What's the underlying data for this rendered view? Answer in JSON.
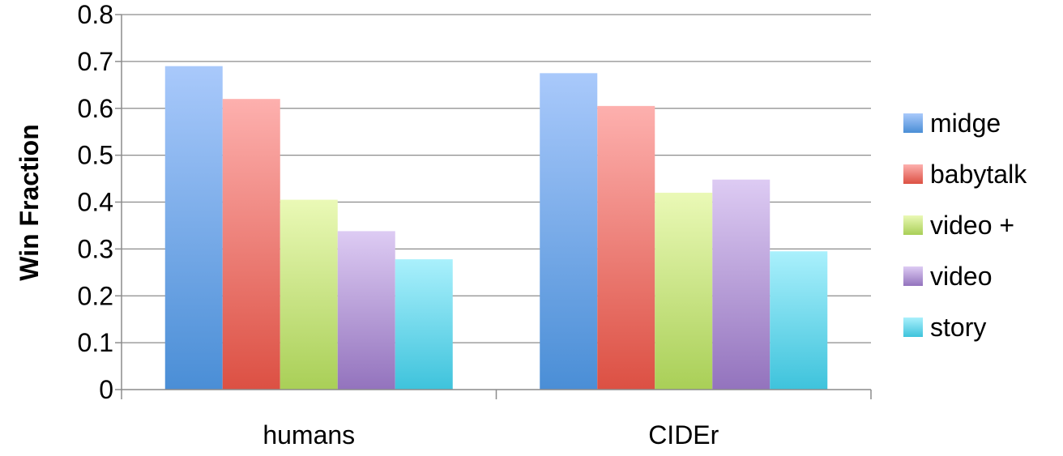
{
  "chart_data": {
    "type": "bar",
    "ylabel": "Win  Fraction",
    "xlabel": "",
    "ylim": [
      0,
      0.8
    ],
    "yticks": [
      "0",
      "0.1",
      "0.2",
      "0.3",
      "0.4",
      "0.5",
      "0.6",
      "0.7",
      "0.8"
    ],
    "grid": true,
    "legend_position": "right",
    "categories": [
      "humans",
      "CIDEr"
    ],
    "series": [
      {
        "name": "midge",
        "values": [
          0.69,
          0.675
        ],
        "color_top": "#a9c9fb",
        "color_bottom": "#4a8ed6"
      },
      {
        "name": "babytalk",
        "values": [
          0.62,
          0.605
        ],
        "color_top": "#fdb0ae",
        "color_bottom": "#dc5043"
      },
      {
        "name": "video +",
        "values": [
          0.405,
          0.42
        ],
        "color_top": "#eaf9b6",
        "color_bottom": "#a9cf57"
      },
      {
        "name": "video",
        "values": [
          0.338,
          0.448
        ],
        "color_top": "#ddcbf3",
        "color_bottom": "#9373bd"
      },
      {
        "name": "story",
        "values": [
          0.278,
          0.295
        ],
        "color_top": "#aaf0fc",
        "color_bottom": "#3ec3dc"
      }
    ]
  }
}
